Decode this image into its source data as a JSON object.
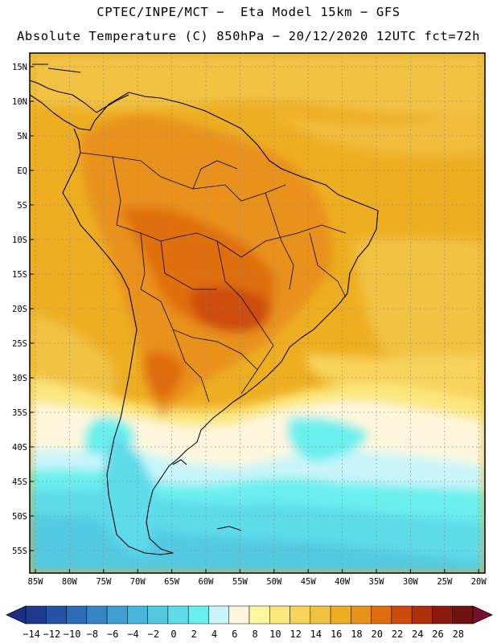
{
  "header": {
    "line1": "CPTEC/INPE/MCT −  Eta Model 15km − GFS",
    "line2": "Absolute Temperature (C) 850hPa − 20/12/2020 12UTC fct=72h"
  },
  "map": {
    "lat_ticks": [
      "15N",
      "10N",
      "5N",
      "EQ",
      "5S",
      "10S",
      "15S",
      "20S",
      "25S",
      "30S",
      "35S",
      "40S",
      "45S",
      "50S",
      "55S"
    ],
    "lon_ticks": [
      "85W",
      "80W",
      "75W",
      "70W",
      "65W",
      "60W",
      "55W",
      "50W",
      "45W",
      "40W",
      "35W",
      "30W",
      "25W",
      "20W"
    ]
  },
  "colorbar": {
    "labels": [
      "-14",
      "-12",
      "-10",
      "-8",
      "-6",
      "-4",
      "-2",
      "0",
      "2",
      "4",
      "6",
      "8",
      "10",
      "12",
      "14",
      "16",
      "18",
      "20",
      "22",
      "24",
      "26",
      "28"
    ],
    "colors": [
      "#1d3a8c",
      "#2452a4",
      "#2c6cb8",
      "#3686c6",
      "#3f9fd2",
      "#48b6dc",
      "#53c9e2",
      "#5fdcea",
      "#6aefef",
      "#c9f5fb",
      "#fdf6dc",
      "#fdf7a0",
      "#fbe77e",
      "#f8d35c",
      "#f1c142",
      "#eeae22",
      "#e8921c",
      "#df6d0e",
      "#cc4a0c",
      "#ad2f0c",
      "#8a1a10",
      "#6f1310"
    ],
    "under_color": "#1a2f85",
    "over_color": "#7a0f2a"
  }
}
